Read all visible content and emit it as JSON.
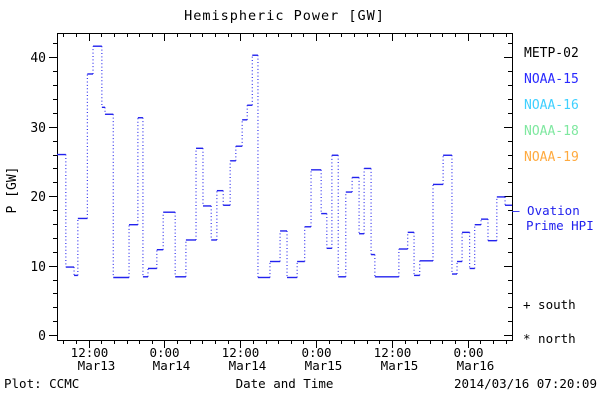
{
  "title": "Hemispheric Power [GW]",
  "footer": {
    "left": "Plot: CCMC",
    "xlabel": "Date and Time",
    "right": "2014/03/16 07:20:09"
  },
  "legend": {
    "satellites": [
      {
        "label": "METP-02",
        "color": "#000000"
      },
      {
        "label": "NOAA-15",
        "color": "#2929ff"
      },
      {
        "label": "NOAA-16",
        "color": "#3fd0ff"
      },
      {
        "label": "NOAA-18",
        "color": "#7fe8a0"
      },
      {
        "label": "NOAA-19",
        "color": "#ffaa3f"
      }
    ],
    "model_line1": "— Ovation",
    "model_line2": "Prime HPI",
    "model_color": "#2222ee",
    "hemisphere_markers": [
      {
        "symbol": "+",
        "label": "south"
      },
      {
        "symbol": "*",
        "label": "north"
      }
    ]
  },
  "chart_data": {
    "type": "line",
    "subtype": "step",
    "title": "Hemispheric Power [GW]",
    "xlabel": "Date and Time",
    "ylabel": "P [GW]",
    "line_color": "#2222ee",
    "grid": false,
    "x_unit": "hours since 2014-03-13 07:00 UT",
    "x_hours_span": 72,
    "ylim": [
      -0.7,
      43.5
    ],
    "y_major_ticks": [
      0,
      10,
      20,
      30,
      40
    ],
    "y_minor_step": 2,
    "x_minor_step_hours": 2,
    "x_major_ticks": [
      {
        "hours": 5,
        "time": "12:00",
        "date": "Mar13"
      },
      {
        "hours": 17,
        "time": "0:00",
        "date": "Mar14"
      },
      {
        "hours": 29,
        "time": "12:00",
        "date": "Mar14"
      },
      {
        "hours": 41,
        "time": "0:00",
        "date": "Mar15"
      },
      {
        "hours": 53,
        "time": "12:00",
        "date": "Mar15"
      },
      {
        "hours": 65,
        "time": "0:00",
        "date": "Mar16"
      }
    ],
    "series": [
      {
        "name": "Ovation Prime HPI",
        "color": "#2222ee",
        "points": [
          [
            0.0,
            26.0
          ],
          [
            1.4,
            9.8
          ],
          [
            2.7,
            8.6
          ],
          [
            3.3,
            16.8
          ],
          [
            4.8,
            37.6
          ],
          [
            5.7,
            41.6
          ],
          [
            7.1,
            32.8
          ],
          [
            7.6,
            31.8
          ],
          [
            8.9,
            8.3
          ],
          [
            11.4,
            15.9
          ],
          [
            12.8,
            31.3
          ],
          [
            13.6,
            8.4
          ],
          [
            14.4,
            9.6
          ],
          [
            15.8,
            12.3
          ],
          [
            16.8,
            17.7
          ],
          [
            18.7,
            8.4
          ],
          [
            20.4,
            13.7
          ],
          [
            22.0,
            26.9
          ],
          [
            23.1,
            18.6
          ],
          [
            24.4,
            13.7
          ],
          [
            25.3,
            20.8
          ],
          [
            26.3,
            18.7
          ],
          [
            27.4,
            25.1
          ],
          [
            28.3,
            27.2
          ],
          [
            29.3,
            31.0
          ],
          [
            30.1,
            33.1
          ],
          [
            30.9,
            40.3
          ],
          [
            31.8,
            8.3
          ],
          [
            33.7,
            10.6
          ],
          [
            35.3,
            15.0
          ],
          [
            36.4,
            8.3
          ],
          [
            38.0,
            10.6
          ],
          [
            39.2,
            15.6
          ],
          [
            40.2,
            23.8
          ],
          [
            41.8,
            17.5
          ],
          [
            42.7,
            12.5
          ],
          [
            43.5,
            25.9
          ],
          [
            44.5,
            8.4
          ],
          [
            45.7,
            20.6
          ],
          [
            46.7,
            22.7
          ],
          [
            47.8,
            14.6
          ],
          [
            48.6,
            24.0
          ],
          [
            49.7,
            11.6
          ],
          [
            50.3,
            8.4
          ],
          [
            54.1,
            12.4
          ],
          [
            55.5,
            14.8
          ],
          [
            56.5,
            8.6
          ],
          [
            57.4,
            10.7
          ],
          [
            59.5,
            21.7
          ],
          [
            61.1,
            25.9
          ],
          [
            62.5,
            8.8
          ],
          [
            63.3,
            10.6
          ],
          [
            64.1,
            14.8
          ],
          [
            65.3,
            9.6
          ],
          [
            66.1,
            15.9
          ],
          [
            67.1,
            16.7
          ],
          [
            68.2,
            13.6
          ],
          [
            69.6,
            19.9
          ],
          [
            70.9,
            18.7
          ],
          [
            72.0,
            18.7
          ]
        ]
      }
    ]
  }
}
